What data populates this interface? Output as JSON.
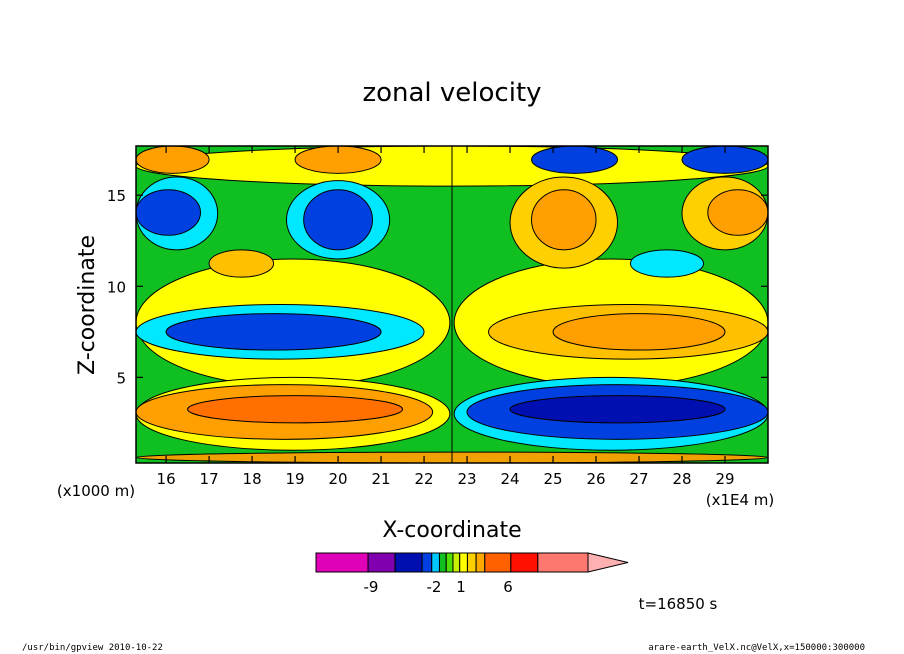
{
  "chart_data": {
    "type": "heatmap",
    "title": "zonal velocity",
    "xlabel": "X-coordinate",
    "ylabel": "Z-coordinate",
    "x_unit": "(x1E4 m)",
    "y_unit": "(x1000 m)",
    "xlim": [
      15.3,
      30.0
    ],
    "ylim": [
      0.3,
      17.7
    ],
    "x_ticks": [
      "16",
      "17",
      "18",
      "19",
      "20",
      "21",
      "22",
      "23",
      "24",
      "25",
      "26",
      "27",
      "28",
      "29"
    ],
    "y_ticks": [
      "5",
      "10",
      "15"
    ],
    "colorbar": {
      "tick_labels": [
        "-9",
        "-2",
        "1",
        "6"
      ],
      "colors": [
        "#e000b8",
        "#8000b0",
        "#0010b0",
        "#0040e0",
        "#00c8ff",
        "#10c020",
        "#50e000",
        "#c8f000",
        "#ffff00",
        "#ffd000",
        "#ffa800",
        "#ff6000",
        "#ff1000",
        "#ff7870",
        "#ffb0b0"
      ]
    },
    "regions": [
      {
        "x": [
          15.3,
          30.0
        ],
        "z": [
          0.3,
          17.7
        ],
        "level": "green"
      },
      {
        "x": [
          15.3,
          22.6
        ],
        "z": [
          4.5,
          11.5
        ],
        "level": "yellow"
      },
      {
        "x": [
          22.7,
          30.0
        ],
        "z": [
          4.5,
          11.5
        ],
        "level": "yellow"
      },
      {
        "x": [
          15.3,
          22.6
        ],
        "z": [
          1.0,
          5.0
        ],
        "level": "yellow"
      },
      {
        "x": [
          22.7,
          30.0
        ],
        "z": [
          1.0,
          5.0
        ],
        "level": "cyan"
      },
      {
        "x": [
          15.3,
          22.2
        ],
        "z": [
          1.6,
          4.6
        ],
        "level": "orange"
      },
      {
        "x": [
          23.0,
          30.0
        ],
        "z": [
          1.6,
          4.6
        ],
        "level": "blue"
      },
      {
        "x": [
          16.5,
          21.5
        ],
        "z": [
          2.5,
          4.0
        ],
        "level": "dark-orange"
      },
      {
        "x": [
          24.0,
          29.0
        ],
        "z": [
          2.5,
          4.0
        ],
        "level": "dark-blue"
      },
      {
        "x": [
          15.3,
          22.0
        ],
        "z": [
          6.0,
          9.0
        ],
        "level": "cyan"
      },
      {
        "x": [
          16.0,
          21.0
        ],
        "z": [
          6.5,
          8.5
        ],
        "level": "blue"
      },
      {
        "x": [
          23.5,
          30.0
        ],
        "z": [
          6.0,
          9.0
        ],
        "level": "orange-yellow"
      },
      {
        "x": [
          25.0,
          29.0
        ],
        "z": [
          6.5,
          8.5
        ],
        "level": "orange"
      },
      {
        "x": [
          15.3,
          30.0
        ],
        "z": [
          15.5,
          17.7
        ],
        "level": "yellow"
      },
      {
        "x": [
          15.3,
          17.2
        ],
        "z": [
          12.0,
          16.0
        ],
        "level": "cyan"
      },
      {
        "x": [
          15.3,
          16.8
        ],
        "z": [
          12.8,
          15.3
        ],
        "level": "blue"
      },
      {
        "x": [
          18.8,
          21.2
        ],
        "z": [
          11.5,
          15.8
        ],
        "level": "cyan"
      },
      {
        "x": [
          19.2,
          20.8
        ],
        "z": [
          12.0,
          15.3
        ],
        "level": "blue"
      },
      {
        "x": [
          24.0,
          26.5
        ],
        "z": [
          11.0,
          16.0
        ],
        "level": "yellow-orange"
      },
      {
        "x": [
          24.5,
          26.0
        ],
        "z": [
          12.0,
          15.3
        ],
        "level": "orange"
      },
      {
        "x": [
          28.0,
          30.0
        ],
        "z": [
          12.0,
          16.0
        ],
        "level": "yellow-orange"
      },
      {
        "x": [
          28.6,
          30.0
        ],
        "z": [
          12.8,
          15.3
        ],
        "level": "orange"
      },
      {
        "x": [
          26.8,
          28.5
        ],
        "z": [
          10.5,
          12.0
        ],
        "level": "cyan"
      },
      {
        "x": [
          17.0,
          18.5
        ],
        "z": [
          10.5,
          12.0
        ],
        "level": "orange-yellow"
      },
      {
        "x": [
          15.3,
          17.0
        ],
        "z": [
          16.2,
          17.7
        ],
        "level": "orange"
      },
      {
        "x": [
          19.0,
          21.0
        ],
        "z": [
          16.2,
          17.7
        ],
        "level": "orange"
      },
      {
        "x": [
          24.5,
          26.5
        ],
        "z": [
          16.2,
          17.7
        ],
        "level": "blue"
      },
      {
        "x": [
          28.0,
          30.0
        ],
        "z": [
          16.2,
          17.7
        ],
        "level": "blue"
      },
      {
        "x": [
          15.3,
          30.0
        ],
        "z": [
          0.3,
          0.9
        ],
        "level": "blue-orange"
      }
    ]
  },
  "annotations": {
    "time": "t=16850 s"
  },
  "footer": {
    "left": "/usr/bin/gpview  2010-10-22",
    "right": "arare-earth_VelX.nc@VelX,x=150000:300000"
  }
}
